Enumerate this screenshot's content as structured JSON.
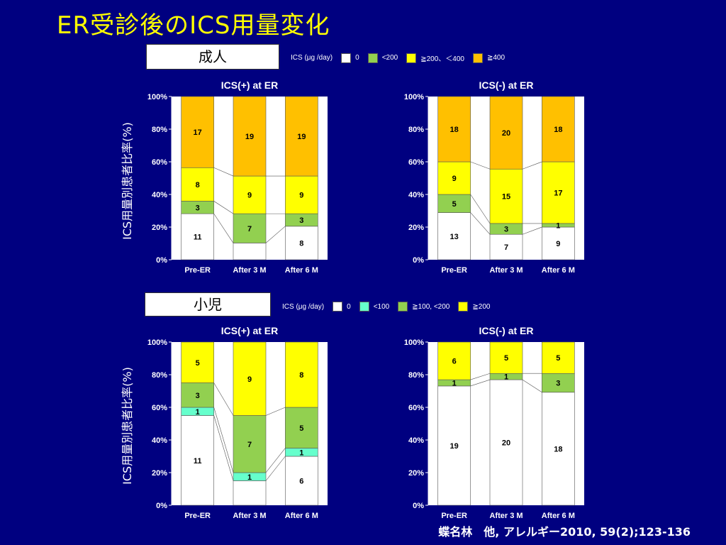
{
  "title": "ER受診後のICS用量変化",
  "citation": "蝶名林　他, アレルギー2010, 59(2);123-136",
  "adult": {
    "box_label": "成人",
    "legend": {
      "head": "ICS (μg /day)",
      "items": [
        {
          "label": "0",
          "color": "#FFFFFF"
        },
        {
          "label": "<200",
          "color": "#92D050"
        },
        {
          "label": "≧200、＜400",
          "color": "#FFFF00"
        },
        {
          "label": "≧400",
          "color": "#FFC000"
        }
      ]
    },
    "ylabel": "ICS用量別患者比率(%)"
  },
  "child": {
    "box_label": "小児",
    "legend": {
      "head": "ICS (μg /day)",
      "items": [
        {
          "label": "0",
          "color": "#FFFFFF"
        },
        {
          "label": "<100",
          "color": "#66FFCC"
        },
        {
          "label": "≧100, <200",
          "color": "#92D050"
        },
        {
          "label": "≧200",
          "color": "#FFFF00"
        }
      ]
    },
    "ylabel": "ICS用量別患者比率(%)"
  },
  "chart_data": [
    {
      "type": "bar",
      "stacked": true,
      "normalized": true,
      "title": "ICS(+) at ER",
      "categories": [
        "Pre-ER",
        "After 3 M",
        "After 6 M"
      ],
      "yticks": [
        "0%",
        "20%",
        "40%",
        "60%",
        "80%",
        "100%"
      ],
      "ylim": [
        0,
        100
      ],
      "series": [
        {
          "values": [
            11,
            4,
            8
          ],
          "labels": [
            "11",
            "",
            "8"
          ],
          "color": "#FFFFFF"
        },
        {
          "values": [
            3,
            7,
            3
          ],
          "labels": [
            "3",
            "7",
            "3"
          ],
          "color": "#92D050"
        },
        {
          "values": [
            8,
            9,
            9
          ],
          "labels": [
            "8",
            "9",
            "9"
          ],
          "color": "#FFFF00"
        },
        {
          "values": [
            17,
            19,
            19
          ],
          "labels": [
            "17",
            "19",
            "19"
          ],
          "color": "#FFC000"
        }
      ]
    },
    {
      "type": "bar",
      "stacked": true,
      "normalized": true,
      "title": "ICS(-) at ER",
      "categories": [
        "Pre-ER",
        "After 3 M",
        "After 6 M"
      ],
      "yticks": [
        "0%",
        "20%",
        "40%",
        "60%",
        "80%",
        "100%"
      ],
      "ylim": [
        0,
        100
      ],
      "series": [
        {
          "values": [
            13,
            7,
            9
          ],
          "labels": [
            "13",
            "7",
            "9"
          ],
          "color": "#FFFFFF"
        },
        {
          "values": [
            5,
            3,
            1
          ],
          "labels": [
            "5",
            "3",
            "1"
          ],
          "color": "#92D050"
        },
        {
          "values": [
            9,
            15,
            17
          ],
          "labels": [
            "9",
            "15",
            "17"
          ],
          "color": "#FFFF00"
        },
        {
          "values": [
            18,
            20,
            18
          ],
          "labels": [
            "18",
            "20",
            "18"
          ],
          "color": "#FFC000"
        }
      ]
    },
    {
      "type": "bar",
      "stacked": true,
      "normalized": true,
      "title": "ICS(+) at ER",
      "categories": [
        "Pre-ER",
        "After 3 M",
        "After 6 M"
      ],
      "yticks": [
        "0%",
        "20%",
        "40%",
        "60%",
        "80%",
        "100%"
      ],
      "ylim": [
        0,
        100
      ],
      "series": [
        {
          "values": [
            11,
            3,
            6
          ],
          "labels": [
            "11",
            "",
            "6"
          ],
          "color": "#FFFFFF"
        },
        {
          "values": [
            1,
            1,
            1
          ],
          "labels": [
            "1",
            "1",
            "1"
          ],
          "color": "#66FFCC"
        },
        {
          "values": [
            3,
            7,
            5
          ],
          "labels": [
            "3",
            "7",
            "5"
          ],
          "color": "#92D050"
        },
        {
          "values": [
            5,
            9,
            8
          ],
          "labels": [
            "5",
            "9",
            "8"
          ],
          "color": "#FFFF00"
        }
      ]
    },
    {
      "type": "bar",
      "stacked": true,
      "normalized": true,
      "title": "ICS(-) at ER",
      "categories": [
        "Pre-ER",
        "After 3 M",
        "After 6 M"
      ],
      "yticks": [
        "0%",
        "20%",
        "40%",
        "60%",
        "80%",
        "100%"
      ],
      "ylim": [
        0,
        100
      ],
      "series": [
        {
          "values": [
            19,
            20,
            18
          ],
          "labels": [
            "19",
            "20",
            "18"
          ],
          "color": "#FFFFFF"
        },
        {
          "values": [
            1,
            1,
            3
          ],
          "labels": [
            "1",
            "1",
            "3"
          ],
          "color": "#92D050"
        },
        {
          "values": [
            6,
            5,
            5
          ],
          "labels": [
            "6",
            "5",
            "5"
          ],
          "color": "#FFFF00"
        }
      ]
    }
  ]
}
